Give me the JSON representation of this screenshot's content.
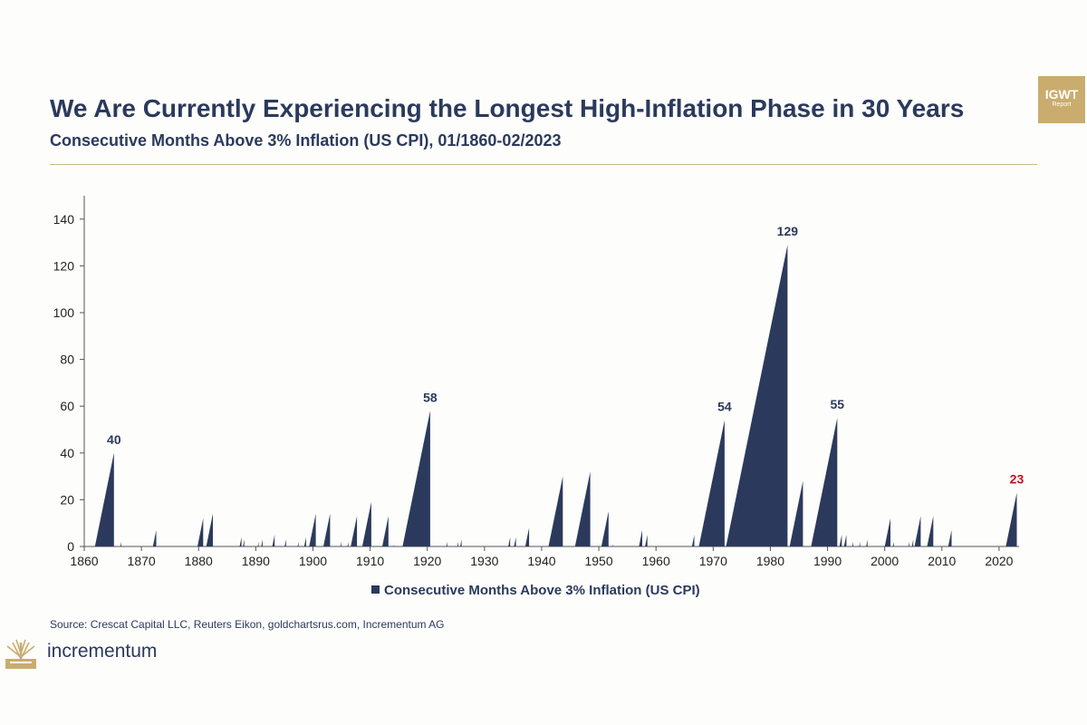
{
  "header": {
    "title": "We Are Currently Experiencing the Longest High-Inflation Phase in 30 Years",
    "subtitle": "Consecutive Months Above 3% Inflation (US CPI), 01/1860-02/2023"
  },
  "badge": {
    "main": "IGWT",
    "sub": "Report"
  },
  "footer": {
    "source": "Source: Crescat Capital LLC, Reuters Eikon, goldchartsrus.com, Incrementum AG",
    "logo_text": "incrementum"
  },
  "colors": {
    "primary": "#2b3a5c",
    "highlight": "#c0111f",
    "gold": "#c9ac6e",
    "axis": "#555555"
  },
  "chart_data": {
    "type": "area",
    "title": "We Are Currently Experiencing the Longest High-Inflation Phase in 30 Years",
    "subtitle": "Consecutive Months Above 3% Inflation (US CPI), 01/1860-02/2023",
    "xlabel": "",
    "ylabel": "",
    "xlim": [
      1860,
      2023.5
    ],
    "ylim": [
      0,
      150
    ],
    "x_ticks": [
      1860,
      1870,
      1880,
      1890,
      1900,
      1910,
      1920,
      1930,
      1940,
      1950,
      1960,
      1970,
      1980,
      1990,
      2000,
      2010,
      2020
    ],
    "y_ticks": [
      0,
      20,
      40,
      60,
      80,
      100,
      120,
      140
    ],
    "grid": false,
    "legend": [
      "Consecutive Months Above 3% Inflation (US CPI)"
    ],
    "legend_position": "bottom",
    "series": [
      {
        "name": "Consecutive Months Above 3% Inflation (US CPI)",
        "episodes": [
          {
            "end": 1865.2,
            "months": 40
          },
          {
            "end": 1866.5,
            "months": 2
          },
          {
            "end": 1872.6,
            "months": 7
          },
          {
            "end": 1880.8,
            "months": 12
          },
          {
            "end": 1882.5,
            "months": 14
          },
          {
            "end": 1887.5,
            "months": 4
          },
          {
            "end": 1888.0,
            "months": 3
          },
          {
            "end": 1890.5,
            "months": 2
          },
          {
            "end": 1891.2,
            "months": 3
          },
          {
            "end": 1893.3,
            "months": 5
          },
          {
            "end": 1895.3,
            "months": 3
          },
          {
            "end": 1897.5,
            "months": 2
          },
          {
            "end": 1898.8,
            "months": 4
          },
          {
            "end": 1900.5,
            "months": 14
          },
          {
            "end": 1903.0,
            "months": 14
          },
          {
            "end": 1905.0,
            "months": 2
          },
          {
            "end": 1906.2,
            "months": 2
          },
          {
            "end": 1907.7,
            "months": 13
          },
          {
            "end": 1910.2,
            "months": 19
          },
          {
            "end": 1913.2,
            "months": 13
          },
          {
            "end": 1914.2,
            "months": 1
          },
          {
            "end": 1920.5,
            "months": 58
          },
          {
            "end": 1923.5,
            "months": 2
          },
          {
            "end": 1925.4,
            "months": 2
          },
          {
            "end": 1926.0,
            "months": 3
          },
          {
            "end": 1934.5,
            "months": 4
          },
          {
            "end": 1935.5,
            "months": 4
          },
          {
            "end": 1937.8,
            "months": 8
          },
          {
            "end": 1943.7,
            "months": 30
          },
          {
            "end": 1948.5,
            "months": 32
          },
          {
            "end": 1951.7,
            "months": 15
          },
          {
            "end": 1952.5,
            "months": 1
          },
          {
            "end": 1957.6,
            "months": 7
          },
          {
            "end": 1958.5,
            "months": 5
          },
          {
            "end": 1966.7,
            "months": 5
          },
          {
            "end": 1972.0,
            "months": 54
          },
          {
            "end": 1983.0,
            "months": 129
          },
          {
            "end": 1985.7,
            "months": 28
          },
          {
            "end": 1991.7,
            "months": 55
          },
          {
            "end": 1992.5,
            "months": 5
          },
          {
            "end": 1993.3,
            "months": 5
          },
          {
            "end": 1994.5,
            "months": 2
          },
          {
            "end": 1995.7,
            "months": 2
          },
          {
            "end": 1997.0,
            "months": 3
          },
          {
            "end": 2001.0,
            "months": 12
          },
          {
            "end": 2001.6,
            "months": 2
          },
          {
            "end": 2004.3,
            "months": 2
          },
          {
            "end": 2005.0,
            "months": 3
          },
          {
            "end": 2006.3,
            "months": 13
          },
          {
            "end": 2008.5,
            "months": 13
          },
          {
            "end": 2011.7,
            "months": 7
          },
          {
            "end": 2023.1,
            "months": 23
          }
        ]
      }
    ],
    "annotations": [
      {
        "label": "40",
        "x": 1865.2,
        "y": 40,
        "color": "primary"
      },
      {
        "label": "58",
        "x": 1920.5,
        "y": 58,
        "color": "primary"
      },
      {
        "label": "54",
        "x": 1972.0,
        "y": 54,
        "color": "primary"
      },
      {
        "label": "129",
        "x": 1983.0,
        "y": 129,
        "color": "primary"
      },
      {
        "label": "55",
        "x": 1991.7,
        "y": 55,
        "color": "primary"
      },
      {
        "label": "23",
        "x": 2023.1,
        "y": 23,
        "color": "highlight"
      }
    ]
  }
}
